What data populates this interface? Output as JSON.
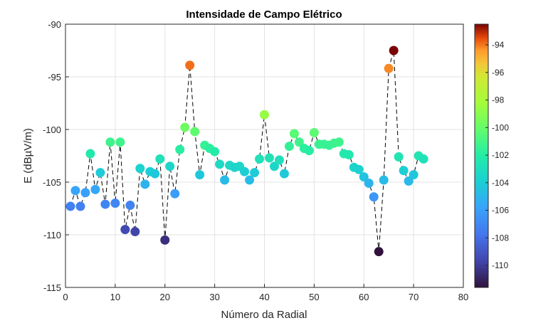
{
  "chart_data": {
    "type": "scatter",
    "title": "Intensidade de Campo Elétrico",
    "xlabel": "Número da Radial",
    "ylabel": "E (dBµV/m)",
    "xlim": [
      0,
      80
    ],
    "ylim": [
      -115,
      -90
    ],
    "xticks": [
      0,
      10,
      20,
      30,
      40,
      50,
      60,
      70,
      80
    ],
    "yticks": [
      -90,
      -95,
      -100,
      -105,
      -110,
      -115
    ],
    "grid": true,
    "connector": "black dashed line",
    "colormap": "jet/turbo",
    "colorbar": {
      "clim": [
        -111.6,
        -92.5
      ],
      "ticks": [
        -94,
        -96,
        -98,
        -100,
        -102,
        -104,
        -106,
        -108,
        -110
      ]
    },
    "x": [
      1,
      2,
      3,
      4,
      5,
      6,
      7,
      8,
      9,
      10,
      11,
      12,
      13,
      14,
      15,
      16,
      17,
      18,
      19,
      20,
      21,
      22,
      23,
      24,
      25,
      26,
      27,
      28,
      29,
      30,
      31,
      32,
      33,
      34,
      35,
      36,
      37,
      38,
      39,
      40,
      41,
      42,
      43,
      44,
      45,
      46,
      47,
      48,
      49,
      50,
      51,
      52,
      53,
      54,
      55,
      56,
      57,
      58,
      59,
      60,
      61,
      62,
      63,
      64,
      65,
      66,
      67,
      68,
      69,
      70,
      71,
      72
    ],
    "y": [
      -107.3,
      -105.8,
      -107.3,
      -106.0,
      -102.3,
      -105.7,
      -104.1,
      -107.1,
      -101.2,
      -107.0,
      -101.2,
      -109.5,
      -107.2,
      -109.7,
      -103.7,
      -105.2,
      -104.0,
      -104.2,
      -102.8,
      -110.5,
      -103.5,
      -106.1,
      -101.9,
      -99.8,
      -93.9,
      -100.2,
      -104.3,
      -101.5,
      -101.8,
      -102.1,
      -103.3,
      -104.8,
      -103.4,
      -103.6,
      -103.5,
      -104.0,
      -104.8,
      -104.1,
      -102.8,
      -98.6,
      -102.7,
      -103.5,
      -102.9,
      -104.2,
      -101.6,
      -100.4,
      -101.2,
      -101.8,
      -102.0,
      -100.3,
      -101.4,
      -101.4,
      -101.5,
      -101.3,
      -101.2,
      -102.3,
      -102.4,
      -103.6,
      -103.8,
      -104.5,
      -105.1,
      -106.4,
      -111.6,
      -104.8,
      -94.2,
      -92.5,
      -102.6,
      -103.9,
      -104.9,
      -104.3,
      -102.5,
      -102.8
    ]
  }
}
